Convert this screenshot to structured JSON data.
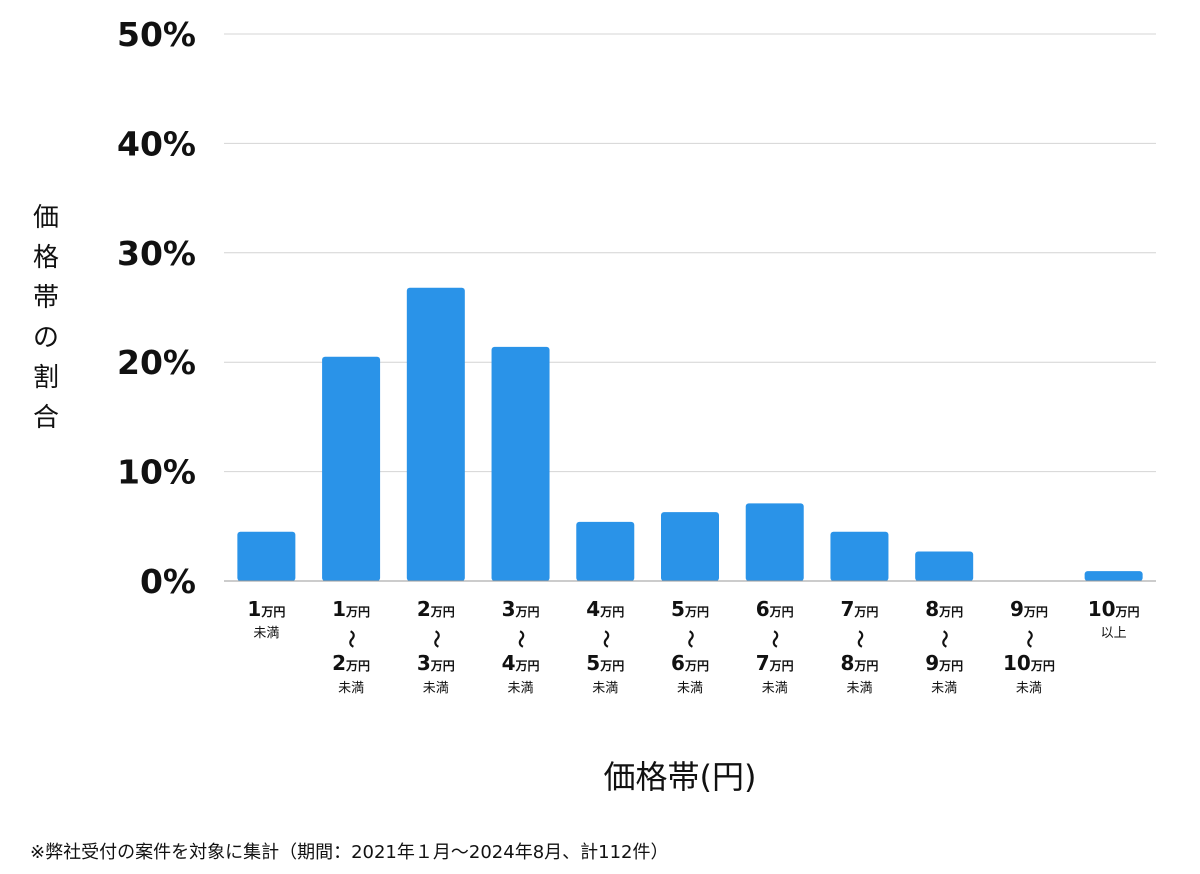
{
  "chart_data": {
    "type": "bar",
    "xlabel": "価格帯(円)",
    "ylabel": "価格帯の割合",
    "ylim": [
      0,
      50
    ],
    "yticks": [
      "0%",
      "10%",
      "20%",
      "30%",
      "40%",
      "50%"
    ],
    "grid": true,
    "bar_color": "#2a93e8",
    "categories": [
      {
        "lines": [
          "1万円",
          "未満"
        ]
      },
      {
        "lines": [
          "1万円",
          "〜",
          "2万円",
          "未満"
        ]
      },
      {
        "lines": [
          "2万円",
          "〜",
          "3万円",
          "未満"
        ]
      },
      {
        "lines": [
          "3万円",
          "〜",
          "4万円",
          "未満"
        ]
      },
      {
        "lines": [
          "4万円",
          "〜",
          "5万円",
          "未満"
        ]
      },
      {
        "lines": [
          "5万円",
          "〜",
          "6万円",
          "未満"
        ]
      },
      {
        "lines": [
          "6万円",
          "〜",
          "7万円",
          "未満"
        ]
      },
      {
        "lines": [
          "7万円",
          "〜",
          "8万円",
          "未満"
        ]
      },
      {
        "lines": [
          "8万円",
          "〜",
          "9万円",
          "未満"
        ]
      },
      {
        "lines": [
          "9万円",
          "〜",
          "10万円",
          "未満"
        ]
      },
      {
        "lines": [
          "10万円",
          "以上"
        ]
      }
    ],
    "values": [
      4.5,
      20.5,
      26.8,
      21.4,
      5.4,
      6.3,
      7.1,
      4.5,
      2.7,
      0,
      0.9
    ]
  },
  "footnote": "※弊社受付の案件を対象に集計（期間：2021年１月〜2024年8月、計112件）"
}
